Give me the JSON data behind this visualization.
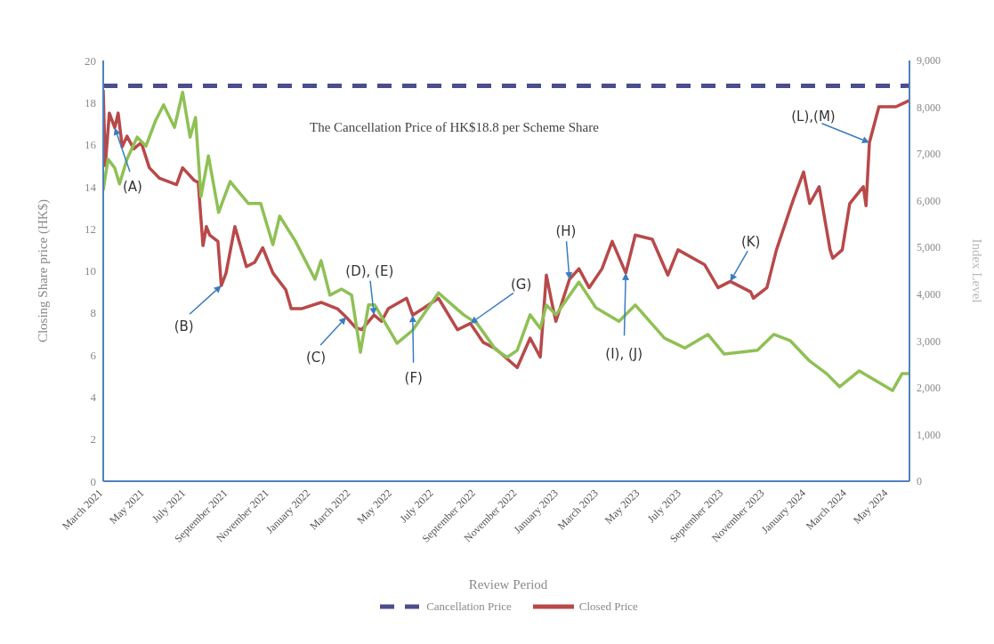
{
  "chart_data": {
    "type": "line",
    "xlabel": "Review Period",
    "ylabel": "Closing Share price (HK$)",
    "y2label": "Index Level",
    "xlim": [
      "2021-03-01",
      "2024-06-01"
    ],
    "xticks": [
      {
        "value": "2021-03-01",
        "label": "March 2021"
      },
      {
        "value": "2021-05-01",
        "label": "May 2021"
      },
      {
        "value": "2021-07-01",
        "label": "July 2021"
      },
      {
        "value": "2021-09-01",
        "label": "September 2021"
      },
      {
        "value": "2021-11-01",
        "label": "November 2021"
      },
      {
        "value": "2022-01-01",
        "label": "January 2022"
      },
      {
        "value": "2022-03-01",
        "label": "March 2022"
      },
      {
        "value": "2022-05-01",
        "label": "May 2022"
      },
      {
        "value": "2022-07-01",
        "label": "July 2022"
      },
      {
        "value": "2022-09-01",
        "label": "September 2022"
      },
      {
        "value": "2022-11-01",
        "label": "November 2022"
      },
      {
        "value": "2023-01-01",
        "label": "January 2023"
      },
      {
        "value": "2023-03-01",
        "label": "March 2023"
      },
      {
        "value": "2023-05-01",
        "label": "May 2023"
      },
      {
        "value": "2023-07-01",
        "label": "July 2023"
      },
      {
        "value": "2023-09-01",
        "label": "September 2023"
      },
      {
        "value": "2023-11-01",
        "label": "November 2023"
      },
      {
        "value": "2024-01-01",
        "label": "January 2024"
      },
      {
        "value": "2024-03-01",
        "label": "March 2024"
      },
      {
        "value": "2024-05-01",
        "label": "May 2024"
      }
    ],
    "ylim": [
      0,
      20
    ],
    "yticks": [
      0,
      2,
      4,
      6,
      8,
      10,
      12,
      14,
      16,
      18,
      20
    ],
    "y2lim": [
      0,
      9000
    ],
    "y2ticks": [
      0,
      {
        "value": 1000,
        "label": "1,000"
      },
      {
        "value": 2000,
        "label": "2,000"
      },
      {
        "value": 3000,
        "label": "3,000"
      },
      {
        "value": 4000,
        "label": "4,000"
      },
      {
        "value": 5000,
        "label": "5,000"
      },
      {
        "value": 6000,
        "label": "6,000"
      },
      {
        "value": 7000,
        "label": "7,000"
      },
      {
        "value": 8000,
        "label": "8,000"
      },
      {
        "value": 9000,
        "label": "9,000"
      }
    ],
    "legend": "bottom",
    "marker": "none",
    "series": [
      {
        "name": "Cancellation Price",
        "color": "#4b4d8c",
        "line_style": "dashed",
        "x": [
          "2021-03-01",
          "2024-06-01"
        ],
        "values": [
          18.8,
          18.8
        ]
      },
      {
        "name": "Closed Price",
        "color": "#b8494a",
        "line_style": "solid",
        "x": [
          "2021-03-01",
          "2021-03-04",
          "2021-03-10",
          "2021-03-18",
          "2021-03-23",
          "2021-03-29",
          "2021-04-05",
          "2021-04-15",
          "2021-04-26",
          "2021-05-08",
          "2021-05-23",
          "2021-06-17",
          "2021-06-26",
          "2021-07-13",
          "2021-07-19",
          "2021-07-26",
          "2021-07-31",
          "2021-08-05",
          "2021-08-17",
          "2021-08-22",
          "2021-08-29",
          "2021-09-11",
          "2021-09-28",
          "2021-10-10",
          "2021-10-22",
          "2021-11-06",
          "2021-11-25",
          "2021-12-03",
          "2021-12-18",
          "2022-01-16",
          "2022-02-09",
          "2022-02-22",
          "2022-03-08",
          "2022-03-17",
          "2022-04-04",
          "2022-04-15",
          "2022-04-25",
          "2022-05-22",
          "2022-05-31",
          "2022-06-15",
          "2022-07-08",
          "2022-08-05",
          "2022-08-24",
          "2022-09-12",
          "2022-09-30",
          "2022-11-01",
          "2022-11-20",
          "2022-12-05",
          "2022-12-14",
          "2022-12-22",
          "2022-12-28",
          "2023-01-17",
          "2023-01-31",
          "2023-02-15",
          "2023-03-06",
          "2023-03-21",
          "2023-04-10",
          "2023-04-24",
          "2023-05-19",
          "2023-06-11",
          "2023-06-26",
          "2023-08-04",
          "2023-08-24",
          "2023-09-11",
          "2023-10-11",
          "2023-10-15",
          "2023-11-04",
          "2023-11-18",
          "2023-12-13",
          "2023-12-28",
          "2024-01-06",
          "2024-01-20",
          "2024-02-05",
          "2024-02-09",
          "2024-02-23",
          "2024-03-05",
          "2024-03-25",
          "2024-03-29",
          "2024-04-03",
          "2024-04-17",
          "2024-05-12",
          "2024-06-01"
        ],
        "values": [
          18.6,
          15.0,
          17.5,
          16.8,
          17.5,
          15.9,
          16.4,
          15.8,
          16.1,
          14.9,
          14.4,
          14.1,
          14.9,
          14.3,
          14.2,
          11.2,
          12.1,
          11.7,
          11.4,
          9.3,
          9.9,
          12.1,
          10.2,
          10.4,
          11.1,
          9.9,
          9.1,
          8.2,
          8.2,
          8.5,
          8.2,
          7.8,
          7.3,
          7.2,
          7.9,
          7.6,
          8.2,
          8.7,
          7.9,
          8.2,
          8.7,
          7.2,
          7.5,
          6.6,
          6.3,
          5.4,
          6.8,
          5.9,
          9.8,
          8.5,
          7.6,
          9.6,
          10.1,
          9.2,
          10.1,
          11.4,
          9.9,
          11.7,
          11.5,
          9.8,
          11.0,
          10.3,
          9.2,
          9.5,
          9.0,
          8.7,
          9.2,
          11.0,
          13.4,
          14.7,
          13.2,
          14.0,
          11.0,
          10.6,
          11.0,
          13.2,
          14.0,
          13.1,
          16.1,
          17.8,
          17.8,
          18.1
        ]
      },
      {
        "color": "#8fc055",
        "line_style": "solid",
        "axis": "y2",
        "x": [
          "2021-03-01",
          "2021-03-08",
          "2021-03-18",
          "2021-03-25",
          "2021-04-05",
          "2021-04-20",
          "2021-05-03",
          "2021-05-17",
          "2021-05-29",
          "2021-06-14",
          "2021-06-26",
          "2021-07-07",
          "2021-07-15",
          "2021-07-23",
          "2021-08-03",
          "2021-08-18",
          "2021-09-04",
          "2021-10-01",
          "2021-10-19",
          "2021-11-06",
          "2021-11-16",
          "2021-12-09",
          "2022-01-07",
          "2022-01-16",
          "2022-01-29",
          "2022-02-15",
          "2022-03-02",
          "2022-03-15",
          "2022-03-27",
          "2022-04-05",
          "2022-05-08",
          "2022-05-31",
          "2022-07-08",
          "2022-08-14",
          "2022-09-03",
          "2022-09-30",
          "2022-10-17",
          "2022-11-01",
          "2022-11-20",
          "2022-12-05",
          "2022-12-14",
          "2022-12-28",
          "2023-01-31",
          "2023-02-25",
          "2023-03-31",
          "2023-04-24",
          "2023-06-06",
          "2023-07-06",
          "2023-08-09",
          "2023-09-02",
          "2023-10-21",
          "2023-11-14",
          "2023-12-08",
          "2024-01-06",
          "2024-01-31",
          "2024-02-19",
          "2024-03-19",
          "2024-05-07",
          "2024-05-21",
          "2024-06-01"
        ],
        "values": [
          6220,
          6890,
          6700,
          6360,
          6890,
          7360,
          7170,
          7710,
          8050,
          7570,
          8320,
          7360,
          7780,
          6090,
          6960,
          5750,
          6410,
          5940,
          5940,
          5060,
          5670,
          5140,
          4320,
          4720,
          3980,
          4110,
          3980,
          2760,
          3770,
          3770,
          2950,
          3230,
          4030,
          3560,
          3370,
          2820,
          2650,
          2800,
          3560,
          3270,
          3770,
          3560,
          4260,
          3710,
          3420,
          3770,
          3060,
          2850,
          3140,
          2720,
          2800,
          3140,
          3010,
          2570,
          2300,
          2020,
          2360,
          1940,
          2300,
          2300
        ]
      }
    ],
    "annotations": [
      "The Cancellation Price of HK$18.8 per Scheme Share",
      {
        "text": "(A)",
        "x": "2021-03-18",
        "y": 16.8
      },
      {
        "text": "(B)",
        "x": "2021-08-22",
        "y": 9.3
      },
      {
        "text": "(C)",
        "x": "2022-02-22",
        "y": 7.8
      },
      {
        "text": "(D), (E)",
        "x": "2022-04-04",
        "y": 7.9
      },
      {
        "text": "(F)",
        "x": "2022-05-31",
        "y": 7.9
      },
      {
        "text": "(G)",
        "x": "2022-08-24",
        "y": 7.5
      },
      {
        "text": "(H)",
        "x": "2023-01-17",
        "y": 9.6
      },
      {
        "text": "(I), (J)",
        "x": "2023-04-10",
        "y": 9.9
      },
      {
        "text": "(K)",
        "x": "2023-09-11",
        "y": 9.5
      },
      {
        "text": "(L),(M)",
        "x": "2024-04-03",
        "y": 16.1
      }
    ]
  }
}
